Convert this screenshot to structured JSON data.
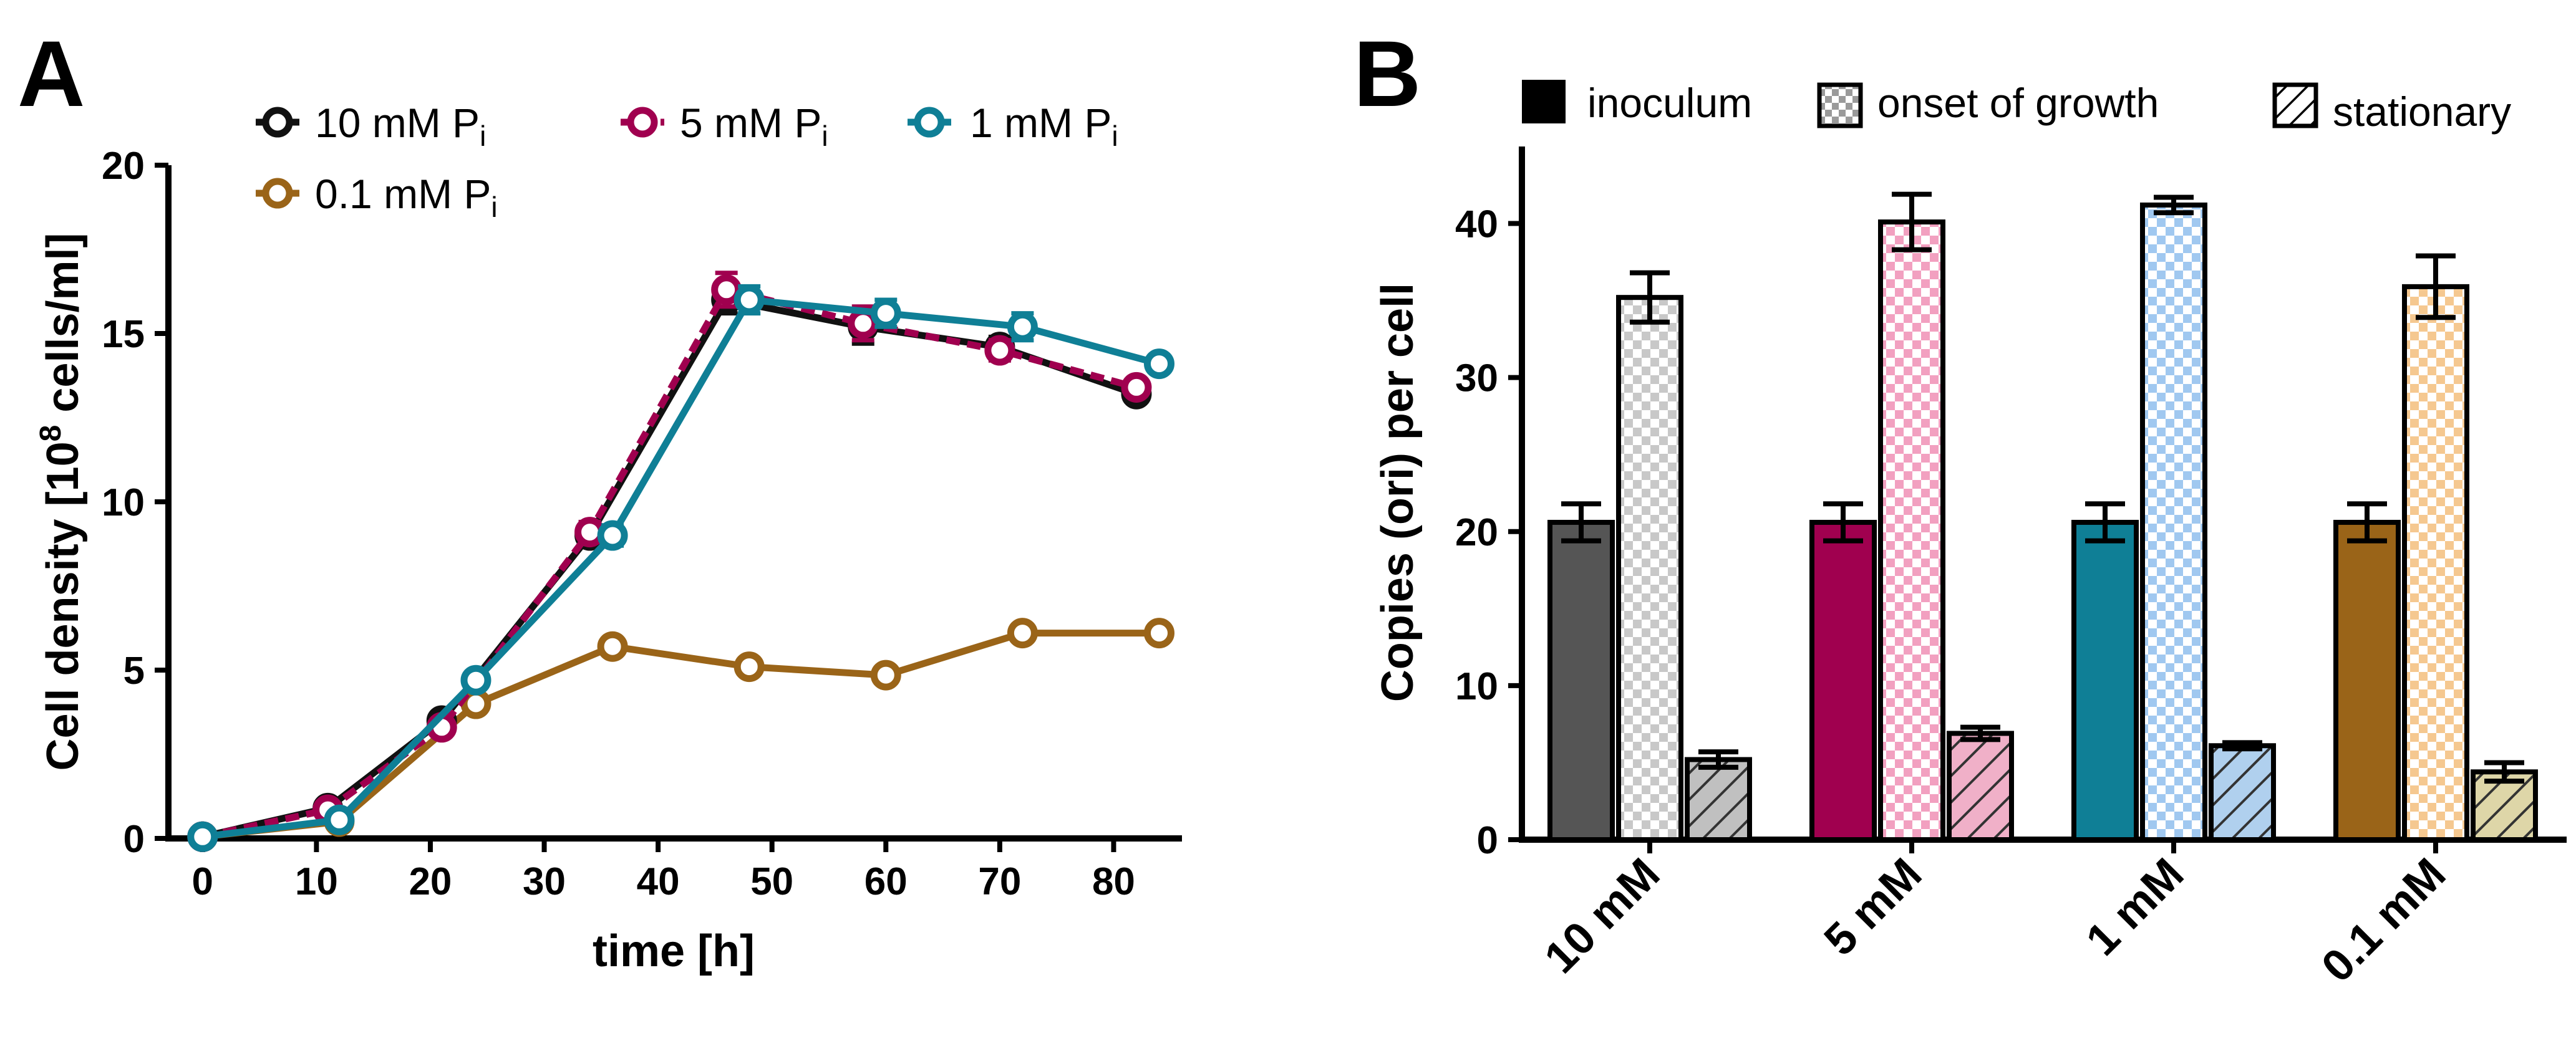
{
  "panels": {
    "a_letter": "A",
    "b_letter": "B"
  },
  "chart_data": [
    {
      "type": "line",
      "panel": "A",
      "xlabel": "time [h]",
      "ylabel_main": "Cell density [10",
      "ylabel_sup": "8",
      "ylabel_tail": " cells/ml]",
      "xlim": [
        -3,
        86
      ],
      "ylim": [
        0,
        20
      ],
      "xticks": [
        0,
        10,
        20,
        30,
        40,
        50,
        60,
        70,
        80
      ],
      "yticks": [
        0,
        5,
        10,
        15,
        20
      ],
      "series": [
        {
          "key": "s10",
          "label_main": "10 mM P",
          "label_sub": "i",
          "color": "#111111",
          "dash": false,
          "x": [
            0,
            11,
            21,
            34,
            46,
            58,
            70,
            82
          ],
          "y": [
            0.05,
            0.9,
            3.5,
            9.0,
            16.0,
            15.2,
            14.6,
            13.2
          ],
          "err": [
            0.1,
            0.15,
            0.2,
            0.3,
            0.4,
            0.5,
            0.3,
            0.2
          ]
        },
        {
          "key": "s5",
          "label_main": "5 mM P",
          "label_sub": "i",
          "color": "#a0004f",
          "dash": true,
          "x": [
            0,
            11,
            21,
            34,
            46,
            58,
            70,
            82
          ],
          "y": [
            0.05,
            0.85,
            3.3,
            9.1,
            16.3,
            15.3,
            14.5,
            13.4
          ],
          "err": [
            0.1,
            0.15,
            0.2,
            0.3,
            0.5,
            0.5,
            0.3,
            0.2
          ]
        },
        {
          "key": "s1",
          "label_main": "1 mM P",
          "label_sub": "i",
          "color": "#0f7f96",
          "dash": false,
          "x": [
            0,
            12,
            24,
            36,
            48,
            60,
            72,
            84
          ],
          "y": [
            0.05,
            0.55,
            4.7,
            9.0,
            16.0,
            15.6,
            15.2,
            14.1
          ],
          "err": [
            0.1,
            0.1,
            0.25,
            0.3,
            0.4,
            0.4,
            0.4,
            0.2
          ]
        },
        {
          "key": "s01",
          "label_main": "0.1 mM P",
          "label_sub": "i",
          "color": "#9a6418",
          "dash": false,
          "x": [
            0,
            12,
            24,
            36,
            48,
            60,
            72,
            84
          ],
          "y": [
            0.05,
            0.5,
            4.0,
            5.7,
            5.1,
            4.85,
            6.1,
            6.1
          ],
          "err": [
            0.1,
            0.1,
            0.15,
            0.15,
            0.15,
            0.15,
            0.2,
            0.15
          ]
        }
      ]
    },
    {
      "type": "bar",
      "panel": "B",
      "ylabel": "Copies (ori) per cell",
      "ylim": [
        0,
        45
      ],
      "yticks": [
        0,
        10,
        20,
        30,
        40
      ],
      "categories": [
        "10 mM",
        "5 mM",
        "1 mM",
        "0.1 mM"
      ],
      "category_colors": [
        "#555555",
        "#a0004f",
        "#0f7f96",
        "#9a6418"
      ],
      "category_light": [
        "#c8c8c8",
        "#f2a0c0",
        "#a0c8f0",
        "#f5c890"
      ],
      "category_hatch": [
        "#c0c0c0",
        "#f0b0c8",
        "#b0d0ee",
        "#ded6a8"
      ],
      "legend": {
        "inoculum": "inoculum",
        "onset": "onset of growth",
        "stationary": "stationary"
      },
      "series": [
        {
          "name": "inoculum",
          "values": [
            20.6,
            20.6,
            20.6,
            20.6
          ],
          "err": [
            1.2,
            1.2,
            1.2,
            1.2
          ]
        },
        {
          "name": "onset of growth",
          "values": [
            35.2,
            40.1,
            41.2,
            35.9
          ],
          "err": [
            1.6,
            1.8,
            0.5,
            2.0
          ]
        },
        {
          "name": "stationary",
          "values": [
            5.2,
            6.9,
            6.1,
            4.4
          ],
          "err": [
            0.5,
            0.4,
            0.2,
            0.6
          ]
        }
      ]
    }
  ]
}
